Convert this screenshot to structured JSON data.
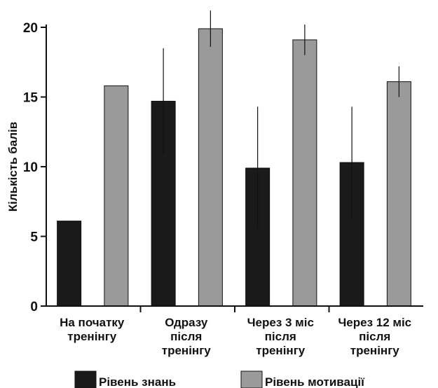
{
  "chart_data": {
    "type": "bar",
    "categories": [
      [
        "На початку",
        "тренінгу"
      ],
      [
        "Одразу",
        "після",
        "тренінгу"
      ],
      [
        "Через 3 міс",
        "після",
        "тренінгу"
      ],
      [
        "Через 12 міс",
        "після",
        "тренінгу"
      ]
    ],
    "series": [
      {
        "name": "Рівень знань",
        "color": "#1a1a1a",
        "values": [
          6.1,
          14.7,
          9.9,
          10.3
        ],
        "errors": [
          0,
          3.8,
          4.4,
          4.0
        ]
      },
      {
        "name": "Рівень мотивації",
        "color": "#9a9a9a",
        "values": [
          15.8,
          19.9,
          19.1,
          16.1
        ],
        "errors": [
          0,
          1.3,
          1.1,
          1.1
        ]
      }
    ],
    "ylabel": "Кількість балів",
    "xlabel": "",
    "ylim": [
      0,
      20
    ],
    "yticks": [
      0,
      5,
      10,
      15,
      20
    ],
    "grid": false,
    "legend_position": "bottom"
  }
}
